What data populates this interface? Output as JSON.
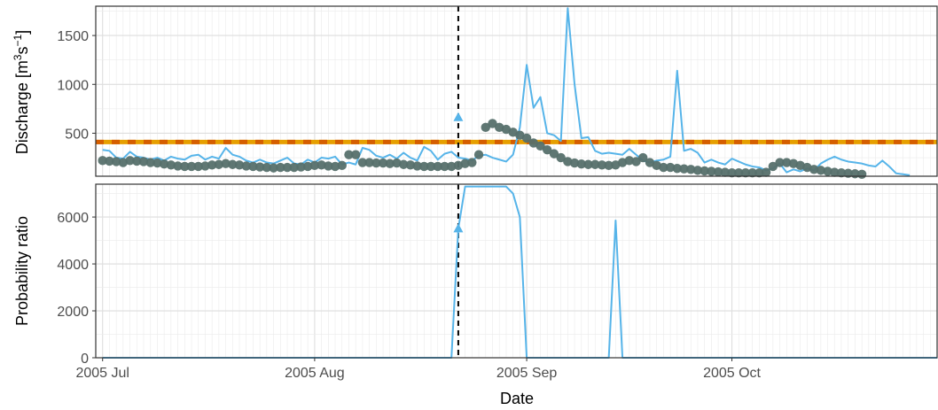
{
  "chart_data": [
    {
      "type": "line",
      "panel": "top",
      "ylabel": "Discharge [m³s⁻¹]",
      "ylabel_parts": {
        "text": "Discharge [m",
        "sup1": "3",
        "mid": "s",
        "sup2": "−1",
        "end": "]"
      },
      "ylim": [
        60,
        1800
      ],
      "yticks": [
        500,
        1000,
        1500
      ],
      "ytick_labels": [
        "500",
        "1000",
        "1500"
      ],
      "x_start": "2005-07-01",
      "x_range": [
        "2005-06-30",
        "2005-10-31"
      ],
      "event_date": "2005-08-22",
      "threshold": 410,
      "threshold_colors": [
        "#e69f00",
        "#d55e00"
      ],
      "grid": true,
      "legend": "none",
      "series": [
        {
          "style": "line",
          "color": "#56b4e9",
          "values": [
            330,
            320,
            250,
            240,
            310,
            260,
            250,
            230,
            250,
            220,
            260,
            240,
            230,
            270,
            280,
            230,
            260,
            240,
            350,
            280,
            260,
            220,
            200,
            230,
            200,
            190,
            220,
            250,
            190,
            180,
            230,
            200,
            250,
            240,
            260,
            180,
            200,
            180,
            350,
            330,
            270,
            250,
            280,
            240,
            300,
            250,
            220,
            360,
            320,
            230,
            290,
            310,
            250,
            240,
            220,
            270,
            280,
            250,
            230,
            210,
            280,
            560,
            1200,
            760,
            870,
            500,
            480,
            420,
            1780,
            1000,
            450,
            460,
            320,
            290,
            300,
            290,
            280,
            340,
            280,
            220,
            200,
            220,
            230,
            260,
            1140,
            320,
            340,
            300,
            200,
            230,
            200,
            180,
            240,
            210,
            180,
            160,
            150,
            120,
            140,
            190,
            100,
            130,
            110,
            140,
            120,
            190,
            230,
            260,
            230,
            210,
            200,
            190,
            170,
            160,
            220,
            160,
            90,
            80,
            70
          ]
        },
        {
          "style": "points",
          "color": "#56706b",
          "values": [
            220,
            215,
            210,
            200,
            220,
            215,
            210,
            200,
            195,
            185,
            175,
            165,
            160,
            160,
            160,
            165,
            175,
            180,
            190,
            180,
            175,
            165,
            160,
            155,
            150,
            145,
            150,
            150,
            150,
            155,
            160,
            170,
            175,
            165,
            160,
            170,
            280,
            280,
            200,
            200,
            195,
            195,
            190,
            195,
            180,
            175,
            165,
            160,
            160,
            160,
            160,
            160,
            170,
            190,
            200,
            280,
            560,
            600,
            560,
            540,
            510,
            480,
            450,
            400,
            370,
            330,
            290,
            250,
            210,
            195,
            185,
            180,
            180,
            175,
            170,
            175,
            200,
            220,
            210,
            250,
            200,
            170,
            150,
            150,
            140,
            135,
            130,
            120,
            115,
            110,
            105,
            100,
            95,
            95,
            95,
            95,
            95,
            100,
            160,
            200,
            200,
            190,
            170,
            150,
            130,
            120,
            110,
            100,
            95,
            90,
            85,
            80
          ]
        },
        {
          "style": "triangle",
          "color": "#56b4e9",
          "x": "2005-08-22",
          "y": 660
        }
      ]
    },
    {
      "type": "line",
      "panel": "bottom",
      "ylabel": "Probability ratio",
      "xlabel": "Date",
      "ylim": [
        0,
        7400
      ],
      "yticks": [
        0,
        2000,
        4000,
        6000
      ],
      "ytick_labels": [
        "0",
        "2000",
        "4000",
        "6000"
      ],
      "xticks": [
        "2005-07-01",
        "2005-08-01",
        "2005-09-01",
        "2005-10-01"
      ],
      "xtick_labels": [
        "2005 Jul",
        "2005 Aug",
        "2005 Sep",
        "2005 Oct"
      ],
      "event_date": "2005-08-22",
      "grid": true,
      "legend": "none",
      "series": [
        {
          "style": "line",
          "color": "#56b4e9",
          "points": [
            [
              "2005-07-01",
              0
            ],
            [
              "2005-08-21",
              0
            ],
            [
              "2005-08-22",
              5500
            ],
            [
              "2005-08-23",
              7300
            ],
            [
              "2005-08-29",
              7300
            ],
            [
              "2005-08-30",
              7000
            ],
            [
              "2005-08-31",
              6000
            ],
            [
              "2005-09-01",
              0
            ],
            [
              "2005-09-13",
              0
            ],
            [
              "2005-09-14",
              5850
            ],
            [
              "2005-09-15",
              0
            ],
            [
              "2005-10-31",
              0
            ]
          ]
        },
        {
          "style": "triangle",
          "color": "#56b4e9",
          "x": "2005-08-22",
          "y": 5500
        }
      ]
    }
  ]
}
